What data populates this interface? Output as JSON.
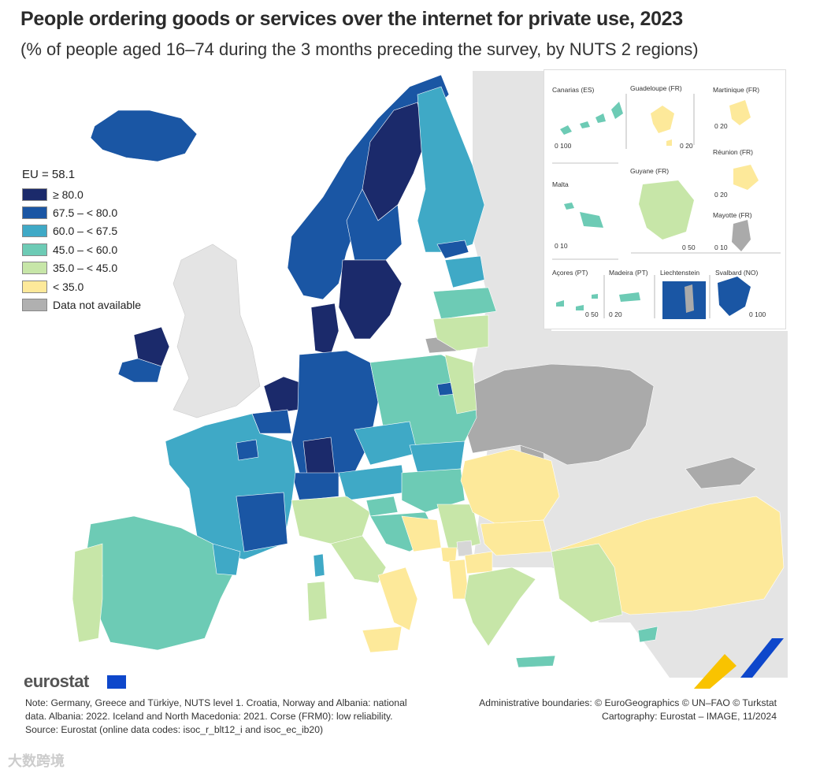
{
  "title": "People ordering goods or services over the internet for private use, 2023",
  "subtitle": "(% of people aged 16–74 during the 3 months preceding the survey, by NUTS 2 regions)",
  "legend": {
    "eu_value": "EU = 58.1",
    "classes": [
      {
        "label": "≥ 80.0",
        "color": "#1b2a6b"
      },
      {
        "label": "67.5 – < 80.0",
        "color": "#1a56a4"
      },
      {
        "label": "60.0 – < 67.5",
        "color": "#3fa9c6"
      },
      {
        "label": "45.0 – < 60.0",
        "color": "#6dcbb5"
      },
      {
        "label": "35.0 – < 45.0",
        "color": "#c7e6a8"
      },
      {
        "label": "< 35.0",
        "color": "#fde99a"
      },
      {
        "label": "Data not available",
        "color": "#b0b0b0"
      }
    ]
  },
  "insets": {
    "canarias": "Canarias (ES)",
    "guadeloupe": "Guadeloupe (FR)",
    "martinique": "Martinique (FR)",
    "reunion": "Réunion (FR)",
    "malta": "Malta",
    "guyane": "Guyane (FR)",
    "mayotte": "Mayotte (FR)",
    "acores": "Açores (PT)",
    "madeira": "Madeira (PT)",
    "liechtenstein": "Liechtenstein",
    "svalbard": "Svalbard (NO)",
    "scale_0": "0",
    "scale_100": "100",
    "scale_20": "20",
    "scale_10": "10",
    "scale_50": "50",
    "scale_0_100": "0 100"
  },
  "logo": "eurostat",
  "note": "Note: Germany, Greece and Türkiye, NUTS level 1. Croatia, Norway and Albania: national data. Albania: 2022. Iceland and North Macedonia: 2021. Corse (FRM0): low reliability.",
  "source": "Source: Eurostat (online data codes: isoc_r_blt12_i and isoc_ec_ib20)",
  "credits_line1": "Administrative boundaries: © EuroGeographics © UN–FAO © Turkstat",
  "credits_line2": "Cartography: Eurostat – IMAGE, 11/2024",
  "watermark": "大数跨境"
}
